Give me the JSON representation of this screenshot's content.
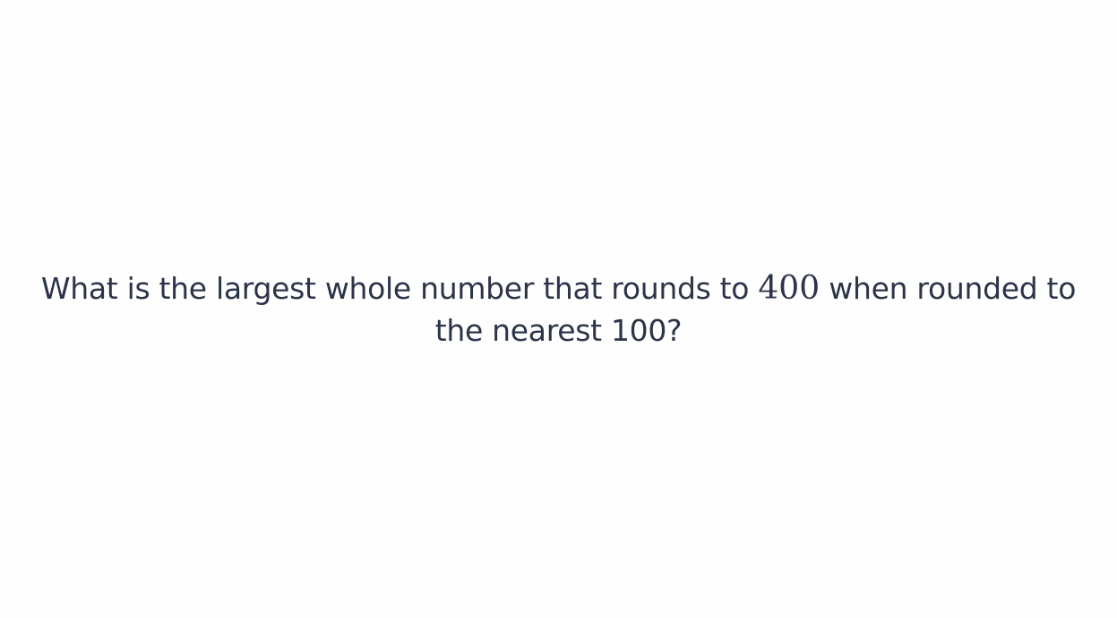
{
  "question": {
    "text_before": "What is the largest whole number that rounds to ",
    "math_value": "400",
    "text_after": " when rounded to the nearest 100?"
  },
  "colors": {
    "background": "#fefefe",
    "text": "#2b3448"
  }
}
